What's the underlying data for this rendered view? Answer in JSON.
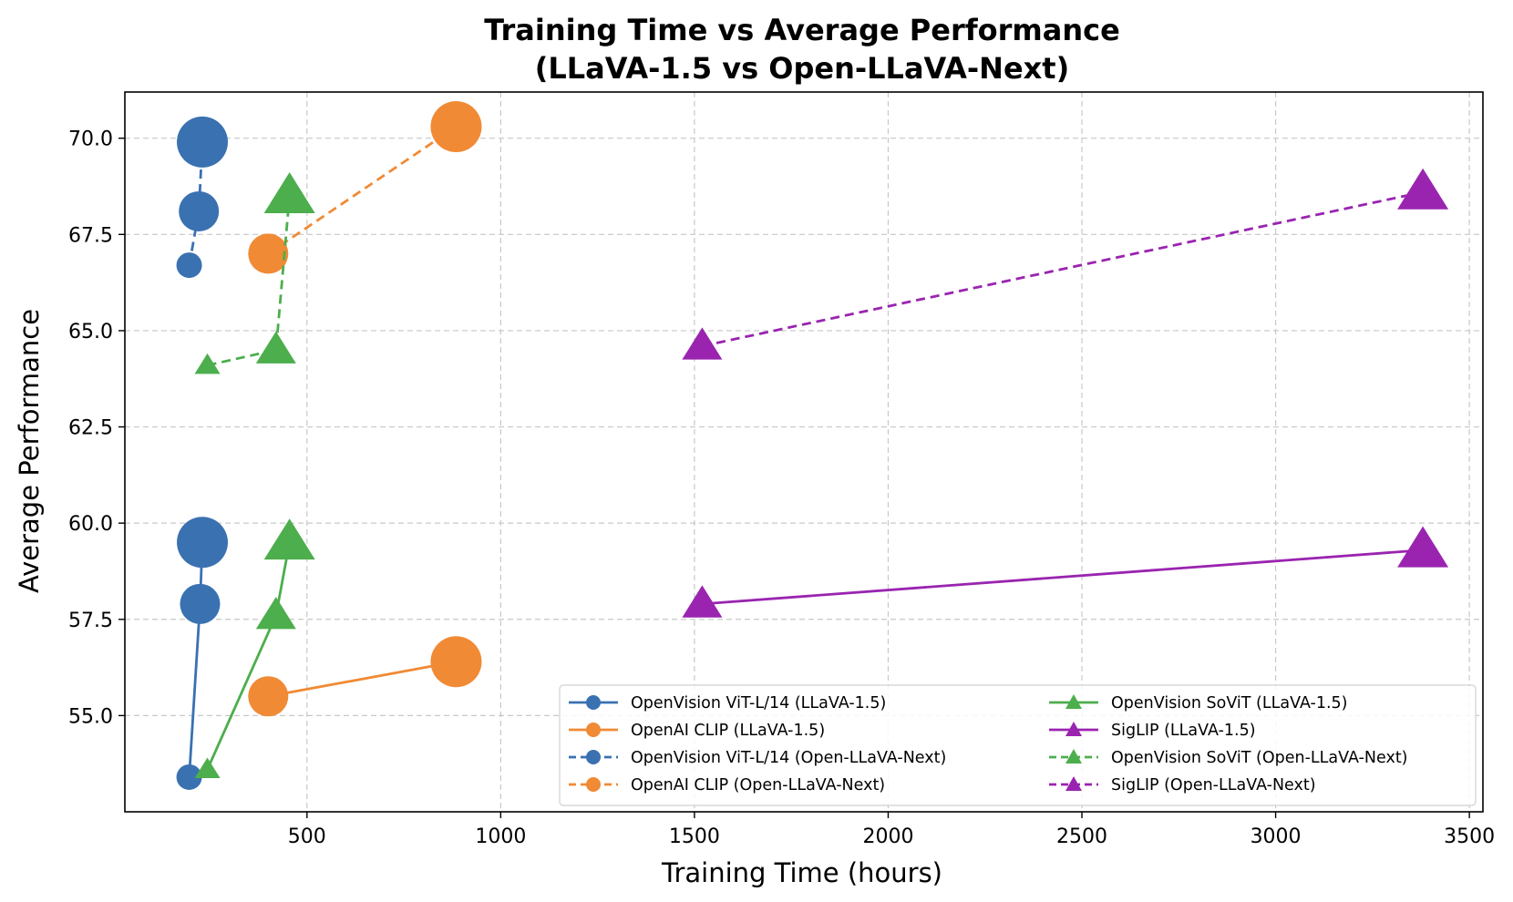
{
  "chart_data": {
    "type": "scatter",
    "title": "Training Time vs Average Performance",
    "subtitle": "(LLaVA-1.5 vs Open-LLaVA-Next)",
    "xlabel": "Training Time (hours)",
    "ylabel": "Average Performance",
    "xlim": [
      30,
      3535
    ],
    "ylim": [
      52.5,
      71.2
    ],
    "xticks": [
      500,
      1000,
      1500,
      2000,
      2500,
      3000,
      3500
    ],
    "yticks": [
      55.0,
      57.5,
      60.0,
      62.5,
      65.0,
      67.5,
      70.0
    ],
    "xtick_labels": [
      "500",
      "1000",
      "1500",
      "2000",
      "2500",
      "3000",
      "3500"
    ],
    "ytick_labels": [
      "55.0",
      "57.5",
      "60.0",
      "62.5",
      "65.0",
      "67.5",
      "70.0"
    ],
    "grid": true,
    "legend_position": "lower-right",
    "series": [
      {
        "name": "OpenVision ViT-L/14 (LLaVA-1.5)",
        "color": "#3a71b1",
        "marker": "circle",
        "linestyle": "solid",
        "points": [
          {
            "x": 196,
            "y": 53.4,
            "size": 1
          },
          {
            "x": 224,
            "y": 57.9,
            "size": 2
          },
          {
            "x": 230,
            "y": 59.5,
            "size": 3
          }
        ]
      },
      {
        "name": "OpenAI CLIP (LLaVA-1.5)",
        "color": "#f08a35",
        "marker": "circle",
        "linestyle": "solid",
        "points": [
          {
            "x": 400,
            "y": 55.5,
            "size": 2
          },
          {
            "x": 885,
            "y": 56.4,
            "size": 3
          }
        ]
      },
      {
        "name": "OpenVision ViT-L/14 (Open-LLaVA-Next)",
        "color": "#3a71b1",
        "marker": "circle",
        "linestyle": "dashed",
        "points": [
          {
            "x": 196,
            "y": 66.7,
            "size": 1
          },
          {
            "x": 221,
            "y": 68.1,
            "size": 2
          },
          {
            "x": 230,
            "y": 69.9,
            "size": 3
          }
        ]
      },
      {
        "name": "OpenAI CLIP (Open-LLaVA-Next)",
        "color": "#f08a35",
        "marker": "circle",
        "linestyle": "dashed",
        "points": [
          {
            "x": 400,
            "y": 67.0,
            "size": 2
          },
          {
            "x": 885,
            "y": 70.3,
            "size": 3
          }
        ]
      },
      {
        "name": "OpenVision SoViT (LLaVA-1.5)",
        "color": "#4cae4c",
        "marker": "triangle",
        "linestyle": "solid",
        "points": [
          {
            "x": 243,
            "y": 53.6,
            "size": 1
          },
          {
            "x": 420,
            "y": 57.6,
            "size": 2
          },
          {
            "x": 455,
            "y": 59.5,
            "size": 3
          }
        ]
      },
      {
        "name": "SigLIP (LLaVA-1.5)",
        "color": "#9a24b0",
        "marker": "triangle",
        "linestyle": "solid",
        "points": [
          {
            "x": 1520,
            "y": 57.9,
            "size": 2
          },
          {
            "x": 3380,
            "y": 59.3,
            "size": 3
          }
        ]
      },
      {
        "name": "OpenVision SoViT (Open-LLaVA-Next)",
        "color": "#4cae4c",
        "marker": "triangle",
        "linestyle": "dashed",
        "points": [
          {
            "x": 243,
            "y": 64.1,
            "size": 1
          },
          {
            "x": 420,
            "y": 64.5,
            "size": 2
          },
          {
            "x": 455,
            "y": 68.5,
            "size": 3
          }
        ]
      },
      {
        "name": "SigLIP (Open-LLaVA-Next)",
        "color": "#9a24b0",
        "marker": "triangle",
        "linestyle": "dashed",
        "points": [
          {
            "x": 1520,
            "y": 64.6,
            "size": 2
          },
          {
            "x": 3380,
            "y": 68.6,
            "size": 3
          }
        ]
      }
    ]
  }
}
